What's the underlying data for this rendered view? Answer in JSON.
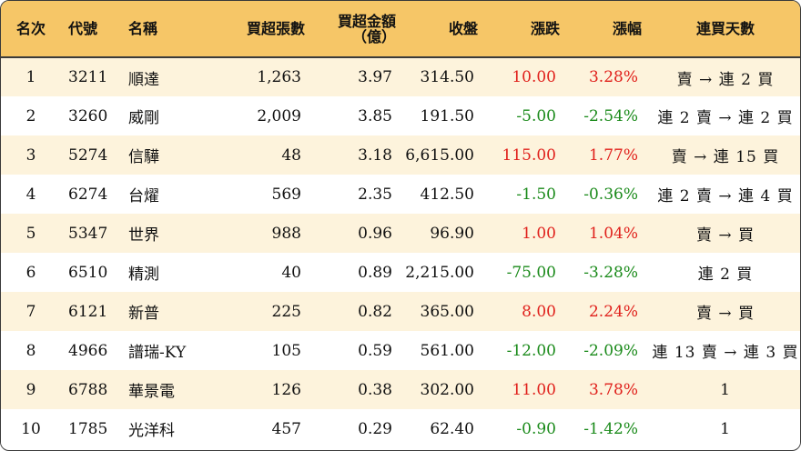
{
  "columns": {
    "rank": "名次",
    "code": "代號",
    "name": "名稱",
    "net_lots": "買超張數",
    "net_amount_line1": "買超金額",
    "net_amount_line2": "（億）",
    "close": "收盤",
    "change": "漲跌",
    "change_pct": "漲幅",
    "streak": "連買天數"
  },
  "colors": {
    "header_bg": "#f6c667",
    "odd_row_bg": "#fdf3dc",
    "up": "#e0201b",
    "down": "#1a8a1a"
  },
  "rows": [
    {
      "rank": "1",
      "code": "3211",
      "name": "順達",
      "net_lots": "1,263",
      "net_amount": "3.97",
      "close": "314.50",
      "change": "10.00",
      "change_pct": "3.28%",
      "dir": "up",
      "streak": "賣 → 連 2 買"
    },
    {
      "rank": "2",
      "code": "3260",
      "name": "威剛",
      "net_lots": "2,009",
      "net_amount": "3.85",
      "close": "191.50",
      "change": "-5.00",
      "change_pct": "-2.54%",
      "dir": "down",
      "streak": "連 2 賣 → 連 2 買"
    },
    {
      "rank": "3",
      "code": "5274",
      "name": "信驊",
      "net_lots": "48",
      "net_amount": "3.18",
      "close": "6,615.00",
      "change": "115.00",
      "change_pct": "1.77%",
      "dir": "up",
      "streak": "賣 → 連 15 買"
    },
    {
      "rank": "4",
      "code": "6274",
      "name": "台燿",
      "net_lots": "569",
      "net_amount": "2.35",
      "close": "412.50",
      "change": "-1.50",
      "change_pct": "-0.36%",
      "dir": "down",
      "streak": "連 2 賣 → 連 4 買"
    },
    {
      "rank": "5",
      "code": "5347",
      "name": "世界",
      "net_lots": "988",
      "net_amount": "0.96",
      "close": "96.90",
      "change": "1.00",
      "change_pct": "1.04%",
      "dir": "up",
      "streak": "賣 → 買"
    },
    {
      "rank": "6",
      "code": "6510",
      "name": "精測",
      "net_lots": "40",
      "net_amount": "0.89",
      "close": "2,215.00",
      "change": "-75.00",
      "change_pct": "-3.28%",
      "dir": "down",
      "streak": "連 2 買"
    },
    {
      "rank": "7",
      "code": "6121",
      "name": "新普",
      "net_lots": "225",
      "net_amount": "0.82",
      "close": "365.00",
      "change": "8.00",
      "change_pct": "2.24%",
      "dir": "up",
      "streak": "賣 → 買"
    },
    {
      "rank": "8",
      "code": "4966",
      "name": "譜瑞-KY",
      "net_lots": "105",
      "net_amount": "0.59",
      "close": "561.00",
      "change": "-12.00",
      "change_pct": "-2.09%",
      "dir": "down",
      "streak": "連 13 賣 → 連 3 買"
    },
    {
      "rank": "9",
      "code": "6788",
      "name": "華景電",
      "net_lots": "126",
      "net_amount": "0.38",
      "close": "302.00",
      "change": "11.00",
      "change_pct": "3.78%",
      "dir": "up",
      "streak": "1"
    },
    {
      "rank": "10",
      "code": "1785",
      "name": "光洋科",
      "net_lots": "457",
      "net_amount": "0.29",
      "close": "62.40",
      "change": "-0.90",
      "change_pct": "-1.42%",
      "dir": "down",
      "streak": "1"
    }
  ]
}
